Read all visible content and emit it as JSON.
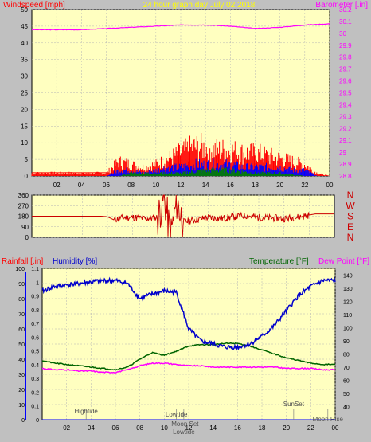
{
  "header": {
    "left_label": "Windspeed [mph]",
    "title": "24 hour graph day   July 02 2018",
    "right_label": "Barometer [.in]"
  },
  "colors": {
    "wind_gust": "#ff0000",
    "wind_avg": "#0000ff",
    "wind_low": "#008000",
    "barometer": "#ff00ff",
    "direction": "#cc0000",
    "humidity": "#0000cc",
    "temperature": "#006400",
    "dewpoint": "#ff00ff",
    "rainfall": "#0000ff",
    "plot_bg": "#ffffc0",
    "frame_bg": "#c0c0c0",
    "grid": "#b4b4b4"
  },
  "chart_data": [
    {
      "type": "line",
      "x_ticks": [
        "02",
        "04",
        "06",
        "08",
        "10",
        "12",
        "14",
        "16",
        "18",
        "20",
        "22",
        "00"
      ],
      "left_axis": {
        "label": "Windspeed [mph]",
        "ylim": [
          0,
          50
        ],
        "ticks": [
          "0",
          "5",
          "10",
          "15",
          "20",
          "25",
          "30",
          "35",
          "40",
          "45",
          "50"
        ]
      },
      "right_axis": {
        "label": "Barometer [.in]",
        "ylim": [
          28.8,
          30.2
        ],
        "ticks": [
          "28.8",
          "28.9",
          "29",
          "29.1",
          "29.2",
          "29.3",
          "29.4",
          "29.5",
          "29.6",
          "29.7",
          "29.8",
          "29.9",
          "30",
          "30.1",
          "30.2"
        ]
      },
      "series": [
        {
          "name": "Barometer",
          "axis": "right",
          "x": [
            0,
            2,
            4,
            6,
            8,
            10,
            12,
            14,
            16,
            18,
            20,
            22,
            24
          ],
          "values": [
            30.03,
            30.03,
            30.03,
            30.04,
            30.05,
            30.06,
            30.07,
            30.07,
            30.06,
            30.04,
            30.05,
            30.07,
            30.08
          ]
        },
        {
          "name": "Wind gust",
          "axis": "left",
          "x": [
            0,
            6,
            7,
            8,
            9,
            10,
            11,
            12,
            13,
            14,
            15,
            16,
            17,
            18,
            19,
            20,
            21,
            22,
            23,
            24
          ],
          "values": [
            1,
            1,
            5,
            4,
            3,
            4,
            6,
            8,
            10,
            10,
            9,
            9,
            8,
            8,
            7,
            6,
            5,
            4,
            1,
            0
          ]
        },
        {
          "name": "Wind average",
          "axis": "left",
          "x": [
            0,
            6,
            7,
            8,
            9,
            10,
            11,
            12,
            13,
            14,
            15,
            16,
            17,
            18,
            19,
            20,
            21,
            22,
            23,
            24
          ],
          "values": [
            0,
            0,
            2,
            2,
            1,
            2,
            3,
            3,
            4,
            4,
            4,
            4,
            3,
            3,
            3,
            3,
            2,
            2,
            0,
            0
          ]
        },
        {
          "name": "Wind low",
          "axis": "left",
          "x": [
            0,
            7,
            8,
            10,
            12,
            14,
            16,
            18,
            20,
            22,
            24
          ],
          "values": [
            0,
            0,
            1,
            1,
            1,
            2,
            2,
            1,
            1,
            0,
            0
          ]
        }
      ]
    },
    {
      "type": "line",
      "x_ticks": [],
      "y_ticks": [
        "0",
        "90",
        "180",
        "270",
        "360"
      ],
      "right_labels": [
        "N",
        "W",
        "S",
        "E",
        "N"
      ],
      "ylim": [
        0,
        360
      ],
      "series": [
        {
          "name": "Wind direction",
          "x": [
            0,
            5.5,
            6,
            6.5,
            7,
            8,
            9,
            10,
            10.5,
            11,
            11.5,
            12,
            13,
            14,
            15,
            16,
            17,
            18,
            19,
            20,
            21,
            22,
            22.5,
            24
          ],
          "values": [
            180,
            180,
            175,
            150,
            165,
            170,
            160,
            170,
            350,
            10,
            300,
            130,
            150,
            170,
            160,
            175,
            185,
            170,
            165,
            160,
            170,
            190,
            200,
            200
          ]
        }
      ]
    },
    {
      "type": "line",
      "x_ticks": [
        "02",
        "04",
        "06",
        "08",
        "10",
        "12",
        "14",
        "16",
        "18",
        "20",
        "22",
        "00"
      ],
      "axis_labels": {
        "rainfall": "Rainfall [.in]",
        "humidity": "Humidity [%]",
        "temperature": "Temperature [°F]",
        "dewpoint": "Dew Point [°F]"
      },
      "rain_axis": {
        "ylim": [
          0,
          1.1
        ],
        "ticks": [
          "0",
          "0.1",
          "0.2",
          "0.3",
          "0.4",
          "0.5",
          "0.6",
          "0.7",
          "0.8",
          "0.9",
          "1",
          "1.1"
        ]
      },
      "humidity_axis": {
        "ylim": [
          0,
          100
        ],
        "ticks": [
          "0",
          "10",
          "20",
          "30",
          "40",
          "50",
          "60",
          "70",
          "80",
          "90",
          "100"
        ]
      },
      "temp_axis": {
        "ylim": [
          30,
          145
        ],
        "ticks": [
          "40",
          "50",
          "60",
          "70",
          "80",
          "90",
          "100",
          "110",
          "120",
          "130",
          "140"
        ]
      },
      "series": [
        {
          "name": "Humidity",
          "axis": "humidity",
          "x": [
            0,
            1,
            2,
            3,
            4,
            5,
            6,
            7,
            8,
            9,
            10,
            11,
            12,
            13,
            14,
            15,
            16,
            17,
            18,
            19,
            20,
            21,
            22,
            23,
            24
          ],
          "values": [
            85,
            88,
            89,
            90,
            91,
            92,
            92,
            90,
            80,
            83,
            85,
            84,
            60,
            52,
            50,
            48,
            48,
            50,
            55,
            62,
            72,
            82,
            88,
            92,
            92
          ]
        },
        {
          "name": "Temperature",
          "axis": "temp",
          "x": [
            0,
            1,
            2,
            3,
            4,
            5,
            6,
            7,
            8,
            9,
            10,
            11,
            12,
            13,
            14,
            15,
            16,
            17,
            18,
            19,
            20,
            21,
            22,
            23,
            24
          ],
          "values": [
            75,
            73,
            72,
            71,
            70,
            69,
            68,
            70,
            76,
            81,
            79,
            82,
            86,
            87,
            87,
            88,
            88,
            86,
            83,
            80,
            77,
            75,
            73,
            72,
            72
          ]
        },
        {
          "name": "Dew Point",
          "axis": "temp",
          "x": [
            0,
            1,
            2,
            3,
            4,
            5,
            6,
            7,
            8,
            9,
            10,
            11,
            12,
            13,
            14,
            15,
            16,
            17,
            18,
            19,
            20,
            21,
            22,
            23,
            24
          ],
          "values": [
            69,
            68,
            68,
            67,
            67,
            66,
            66,
            68,
            71,
            73,
            73,
            72,
            71,
            71,
            70,
            70,
            70,
            70,
            70,
            70,
            69,
            69,
            69,
            68,
            68
          ]
        },
        {
          "name": "Rainfall",
          "axis": "rain",
          "x": [
            0,
            24
          ],
          "values": [
            0,
            0
          ]
        }
      ],
      "annotations": [
        {
          "text": "Hightide",
          "x": 3.6
        },
        {
          "text": "Lowtide",
          "x": 11.0
        },
        {
          "text": "Moon Set",
          "x": 11.7
        },
        {
          "text": "Lowtide",
          "x": 11.6
        },
        {
          "text": "SunSet",
          "x": 20.6
        },
        {
          "text": "Moon Rise",
          "x": 23.4
        }
      ]
    }
  ]
}
